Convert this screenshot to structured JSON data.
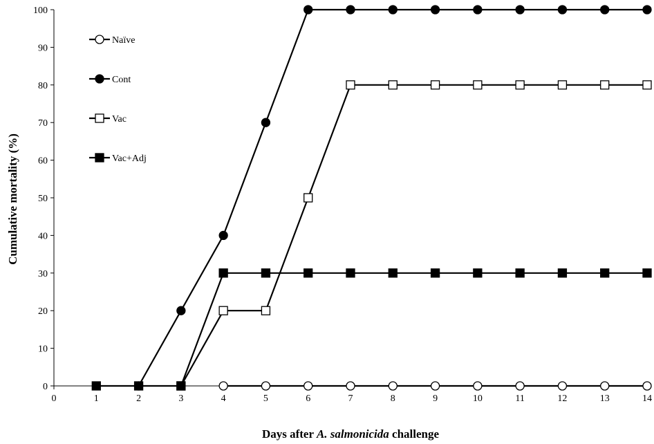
{
  "chart_data": {
    "type": "line",
    "title": "",
    "xlabel_parts": [
      {
        "text": "Days after ",
        "italic": false
      },
      {
        "text": "A. salmonicida",
        "italic": true
      },
      {
        "text": " challenge",
        "italic": false
      }
    ],
    "ylabel": "Cumulative mortality (%)",
    "xlim": [
      0,
      14
    ],
    "ylim": [
      0,
      100
    ],
    "x_ticks": [
      "0",
      "1",
      "2",
      "3",
      "4",
      "5",
      "6",
      "7",
      "8",
      "9",
      "10",
      "11",
      "12",
      "13",
      "14"
    ],
    "y_ticks": [
      "0",
      "10",
      "20",
      "30",
      "40",
      "50",
      "60",
      "70",
      "80",
      "90",
      "100"
    ],
    "grid": false,
    "legend_position": "top-left",
    "series": [
      {
        "name": "Naïve",
        "marker": "circle-open",
        "color": "#000000",
        "x": [
          4,
          5,
          6,
          7,
          8,
          9,
          10,
          11,
          12,
          13,
          14
        ],
        "y": [
          0,
          0,
          0,
          0,
          0,
          0,
          0,
          0,
          0,
          0,
          0
        ]
      },
      {
        "name": "Cont",
        "marker": "circle-filled",
        "color": "#000000",
        "x": [
          2,
          3,
          4,
          5,
          6,
          7,
          8,
          9,
          10,
          11,
          12,
          13,
          14
        ],
        "y": [
          0,
          20,
          40,
          70,
          100,
          100,
          100,
          100,
          100,
          100,
          100,
          100,
          100
        ]
      },
      {
        "name": "Vac",
        "marker": "square-open",
        "color": "#000000",
        "x": [
          3,
          4,
          5,
          6,
          7,
          8,
          9,
          10,
          11,
          12,
          13,
          14
        ],
        "y": [
          0,
          20,
          20,
          50,
          80,
          80,
          80,
          80,
          80,
          80,
          80,
          80
        ]
      },
      {
        "name": "Vac+Adj",
        "marker": "square-filled",
        "color": "#000000",
        "x": [
          1,
          2,
          3,
          4,
          5,
          6,
          7,
          8,
          9,
          10,
          11,
          12,
          13,
          14
        ],
        "y": [
          0,
          0,
          0,
          30,
          30,
          30,
          30,
          30,
          30,
          30,
          30,
          30,
          30,
          30
        ]
      }
    ]
  }
}
